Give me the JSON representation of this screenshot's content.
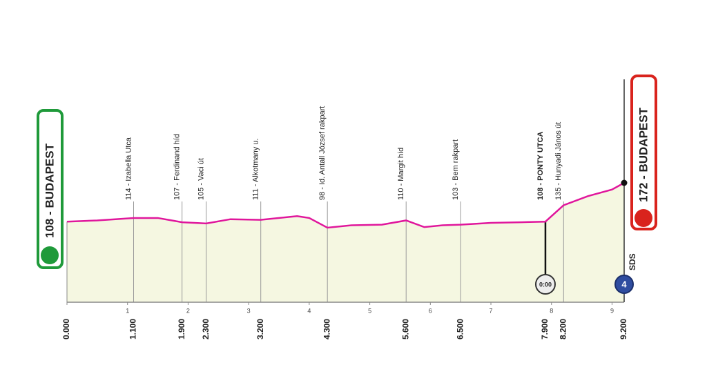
{
  "chart_data": {
    "type": "area",
    "color": "#e0169c",
    "fill": "#f5f7e1",
    "x": [
      0,
      0.5,
      1.1,
      1.5,
      1.9,
      2.3,
      2.7,
      3.2,
      3.8,
      4.0,
      4.3,
      4.7,
      5.2,
      5.6,
      5.9,
      6.2,
      6.5,
      7.0,
      7.5,
      7.9,
      8.2,
      8.6,
      9.0,
      9.2
    ],
    "values": [
      108,
      110,
      114,
      114,
      107,
      105,
      112,
      111,
      117,
      114,
      98,
      102,
      103,
      110,
      99,
      102,
      103,
      106,
      107,
      108,
      135,
      150,
      161,
      172
    ],
    "xlim": [
      0,
      9.2
    ],
    "xticks": [
      1,
      2,
      3,
      4,
      5,
      6,
      7,
      8,
      9
    ],
    "start": {
      "label": "108 - BUDAPEST",
      "km": {
        "value": 0,
        "label": "0.000"
      }
    },
    "finish": {
      "label": "172 - BUDAPEST",
      "km": {
        "value": 9.2,
        "label": "9.200"
      }
    },
    "landmarks": [
      {
        "label": "114 - Izabella Utca",
        "km": {
          "value": 1.1,
          "label": "1.100"
        }
      },
      {
        "label": "107 - Ferdinand híd",
        "km": {
          "value": 1.9,
          "label": "1.900"
        }
      },
      {
        "label": "105 - Vaci út",
        "km": {
          "value": 2.3,
          "label": "2.300"
        }
      },
      {
        "label": "111 - Alkotmany u.",
        "km": {
          "value": 3.2,
          "label": "3.200"
        }
      },
      {
        "label": "98 - Id. Antall József rakpart",
        "km": {
          "value": 4.3,
          "label": "4.300"
        }
      },
      {
        "label": "110 - Margit híd",
        "km": {
          "value": 5.6,
          "label": "5.600"
        }
      },
      {
        "label": "103 - Bem rakpart",
        "km": {
          "value": 6.5,
          "label": "6.500"
        }
      },
      {
        "label": "108 - PONTY UTCA",
        "km": {
          "value": 7.9,
          "label": "7.900"
        }
      },
      {
        "label": "135 - Hunyadi János út",
        "km": {
          "value": 8.2,
          "label": "8.200"
        }
      }
    ],
    "timecheck": {
      "time": "0:00",
      "landmark": 7
    },
    "sds": {
      "label": "SDS",
      "number": "4"
    }
  }
}
